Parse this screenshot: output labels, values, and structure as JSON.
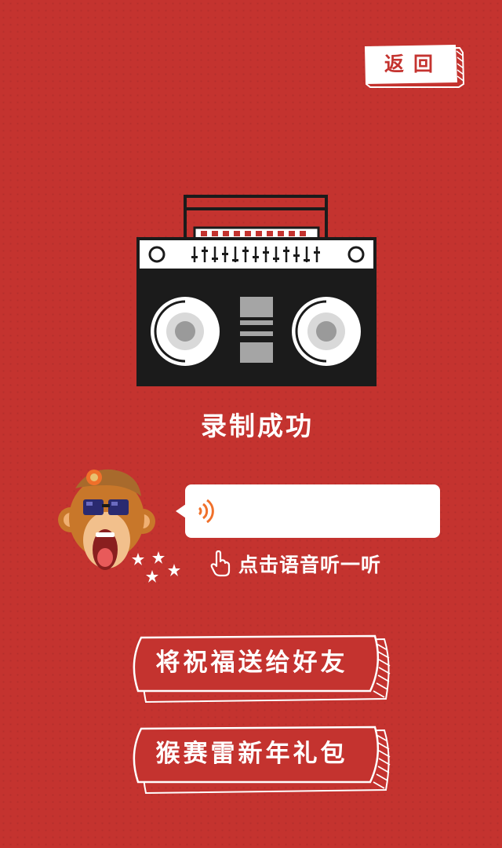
{
  "header": {
    "back_label": "返回"
  },
  "main": {
    "status_title": "录制成功",
    "voice_hint": "点击语音听一听",
    "share_button_label": "将祝福送给好友",
    "gift_button_label": "猴赛雷新年礼包"
  },
  "colors": {
    "background": "#c4332f",
    "foreground": "#ffffff",
    "accent_orange": "#f0702a",
    "dark": "#1b1b1b"
  }
}
